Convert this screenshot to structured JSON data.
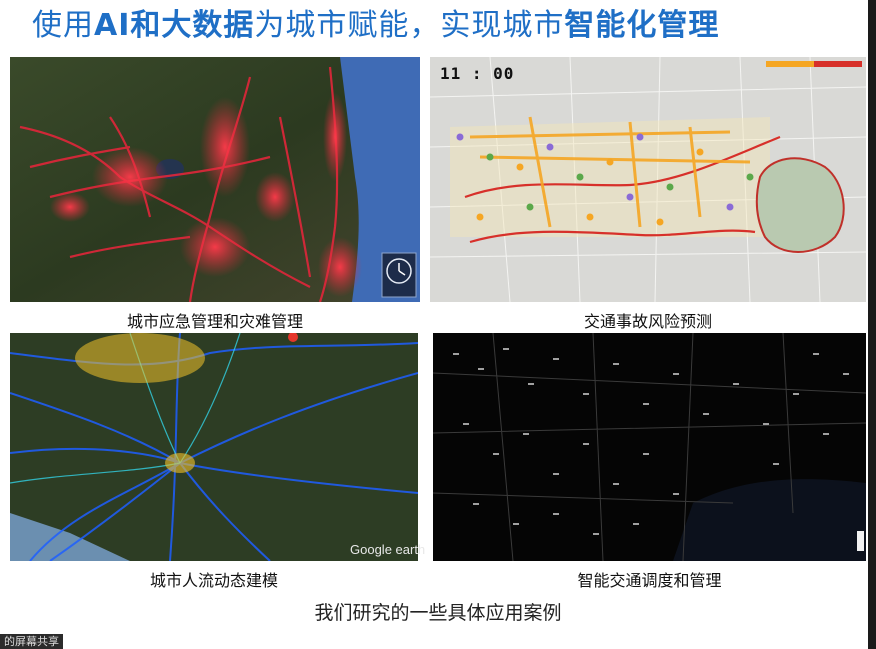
{
  "slide": {
    "title_part1": "使用",
    "title_bold1": "AI和大数据",
    "title_part2": "为城市赋能，实现城市",
    "title_bold2": "智能化管理",
    "footer": "我们研究的一些具体应用案例"
  },
  "panels": [
    {
      "id": "emergency",
      "caption": "城市应急管理和灾难管理"
    },
    {
      "id": "accident",
      "caption": "交通事故风险预测",
      "overlay_time": "11 : 00"
    },
    {
      "id": "flow",
      "caption": "城市人流动态建模",
      "logo": "Google earth"
    },
    {
      "id": "dispatch",
      "caption": "智能交通调度和管理"
    }
  ],
  "screen_share": {
    "label": "的屏幕共享"
  },
  "colors": {
    "title_blue": "#1f6fc6",
    "map_dark_green": "#2f3f22",
    "sea_blue": "#3f6bb5",
    "heat_red": "#e0263a",
    "route_red": "#d7302a",
    "flow_blue": "#1e5fff",
    "night_bg": "#050505"
  }
}
